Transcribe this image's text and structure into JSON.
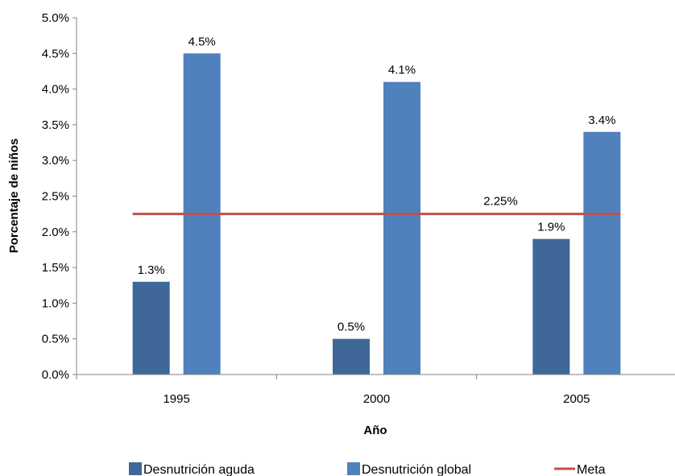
{
  "chart_data": {
    "type": "bar",
    "categories": [
      "1995",
      "2000",
      "2005"
    ],
    "xlabel": "Año",
    "ylabel": "Porcentaje de niños",
    "ylim": [
      0,
      0.05
    ],
    "ytick_step": 0.005,
    "ytick_labels": [
      "0.0%",
      "0.5%",
      "1.0%",
      "1.5%",
      "2.0%",
      "2.5%",
      "3.0%",
      "3.5%",
      "4.0%",
      "4.5%",
      "5.0%"
    ],
    "grid": false,
    "legend_position": "bottom",
    "series": [
      {
        "name": "Desnutrición aguda",
        "color": "#3f6899",
        "values": [
          0.013,
          0.005,
          0.019
        ],
        "labels": [
          "1.3%",
          "0.5%",
          "1.9%"
        ]
      },
      {
        "name": "Desnutrición global",
        "color": "#4f81bd",
        "values": [
          0.045,
          0.041,
          0.034
        ],
        "labels": [
          "4.5%",
          "4.1%",
          "3.4%"
        ]
      }
    ],
    "reference_line": {
      "name": "Meta",
      "value": 0.0225,
      "label": "2.25%",
      "color": "#c0504d"
    }
  }
}
